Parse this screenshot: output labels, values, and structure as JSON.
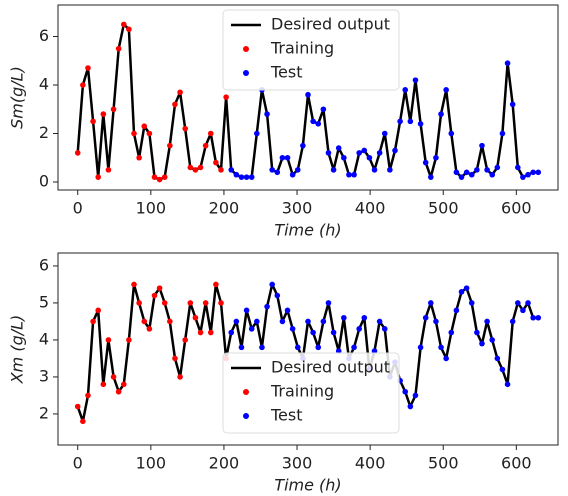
{
  "chart_data": [
    {
      "type": "line",
      "ylabel": "Sm(g/L)",
      "xlabel": "Time  (h)",
      "xlim": [
        -27,
        657
      ],
      "ylim": [
        -0.33,
        7.3
      ],
      "xticks": [
        0,
        100,
        200,
        300,
        400,
        500,
        600
      ],
      "yticks": [
        0,
        2,
        4,
        6
      ],
      "legend": "upper center",
      "series": [
        {
          "name": "Desired output",
          "color": "#000000",
          "style": "line",
          "x": [
            0,
            7,
            14,
            21,
            28,
            35,
            42,
            49,
            56,
            63,
            70,
            77,
            84,
            91,
            98,
            105,
            112,
            119,
            126,
            133,
            140,
            147,
            154,
            161,
            168,
            175,
            182,
            189,
            196,
            203,
            210,
            217,
            224,
            231,
            238,
            245,
            252,
            259,
            266,
            273,
            280,
            287,
            294,
            301,
            308,
            315,
            322,
            329,
            336,
            343,
            350,
            357,
            364,
            371,
            378,
            385,
            392,
            399,
            406,
            413,
            420,
            427,
            434,
            441,
            448,
            455,
            462,
            469,
            476,
            483,
            490,
            497,
            504,
            511,
            518,
            525,
            532,
            539,
            546,
            553,
            560,
            567,
            574,
            581,
            588,
            595,
            602,
            609,
            616,
            623,
            630
          ],
          "values": [
            1.2,
            4.0,
            4.7,
            2.5,
            0.2,
            2.8,
            0.5,
            3.0,
            5.5,
            6.5,
            6.3,
            2.0,
            1.0,
            2.3,
            2.0,
            0.2,
            0.1,
            0.2,
            1.5,
            3.2,
            3.7,
            2.2,
            0.6,
            0.5,
            0.6,
            1.5,
            2.0,
            0.8,
            0.5,
            3.5,
            0.5,
            0.3,
            0.2,
            0.2,
            0.2,
            2.0,
            3.8,
            2.8,
            0.5,
            0.4,
            1.0,
            1.0,
            0.3,
            0.5,
            1.5,
            3.6,
            2.5,
            2.4,
            3.0,
            1.2,
            0.5,
            1.4,
            1.0,
            0.3,
            0.3,
            1.2,
            1.3,
            1.0,
            0.5,
            1.2,
            2.0,
            0.5,
            1.3,
            2.5,
            3.8,
            2.5,
            4.2,
            2.4,
            0.8,
            0.2,
            1.0,
            2.8,
            3.8,
            2.0,
            0.4,
            0.2,
            0.4,
            0.3,
            0.5,
            1.5,
            0.5,
            0.3,
            0.6,
            2.0,
            4.9,
            3.2,
            0.6,
            0.2,
            0.3,
            0.4,
            0.4
          ]
        },
        {
          "name": "Training",
          "color": "#ff0000",
          "style": "dots",
          "x": [
            0,
            7,
            14,
            21,
            28,
            35,
            42,
            49,
            56,
            63,
            70,
            77,
            84,
            91,
            98,
            105,
            112,
            119,
            126,
            133,
            140,
            147,
            154,
            161,
            168,
            175,
            182,
            189,
            196,
            203
          ],
          "values": [
            1.2,
            4.0,
            4.7,
            2.5,
            0.2,
            2.8,
            0.5,
            3.0,
            5.5,
            6.5,
            6.3,
            2.0,
            1.0,
            2.3,
            2.0,
            0.2,
            0.1,
            0.2,
            1.5,
            3.2,
            3.7,
            2.2,
            0.6,
            0.5,
            0.6,
            1.5,
            2.0,
            0.8,
            0.5,
            3.5
          ]
        },
        {
          "name": "Test",
          "color": "#0000ff",
          "style": "dots",
          "x": [
            210,
            217,
            224,
            231,
            238,
            245,
            252,
            259,
            266,
            273,
            280,
            287,
            294,
            301,
            308,
            315,
            322,
            329,
            336,
            343,
            350,
            357,
            364,
            371,
            378,
            385,
            392,
            399,
            406,
            413,
            420,
            427,
            434,
            441,
            448,
            455,
            462,
            469,
            476,
            483,
            490,
            497,
            504,
            511,
            518,
            525,
            532,
            539,
            546,
            553,
            560,
            567,
            574,
            581,
            588,
            595,
            602,
            609,
            616,
            623,
            630
          ],
          "values": [
            0.5,
            0.3,
            0.2,
            0.2,
            0.2,
            2.0,
            3.8,
            2.8,
            0.5,
            0.4,
            1.0,
            1.0,
            0.3,
            0.5,
            1.5,
            3.6,
            2.5,
            2.4,
            3.0,
            1.2,
            0.5,
            1.4,
            1.0,
            0.3,
            0.3,
            1.2,
            1.3,
            1.0,
            0.5,
            1.2,
            2.0,
            0.5,
            1.3,
            2.5,
            3.8,
            2.5,
            4.2,
            2.4,
            0.8,
            0.2,
            1.0,
            2.8,
            3.8,
            2.0,
            0.4,
            0.2,
            0.4,
            0.3,
            0.5,
            1.5,
            0.5,
            0.3,
            0.6,
            2.0,
            4.9,
            3.2,
            0.6,
            0.2,
            0.3,
            0.4,
            0.4
          ]
        }
      ]
    },
    {
      "type": "line",
      "ylabel": "Xm (g/L)",
      "xlabel": "Time  (h)",
      "xlim": [
        -27,
        657
      ],
      "ylim": [
        1.16,
        6.35
      ],
      "xticks": [
        0,
        100,
        200,
        300,
        400,
        500,
        600
      ],
      "yticks": [
        2,
        3,
        4,
        5,
        6
      ],
      "legend": "lower center",
      "series": [
        {
          "name": "Desired output",
          "color": "#000000",
          "style": "line",
          "x": [
            0,
            7,
            14,
            21,
            28,
            35,
            42,
            49,
            56,
            63,
            70,
            77,
            84,
            91,
            98,
            105,
            112,
            119,
            126,
            133,
            140,
            147,
            154,
            161,
            168,
            175,
            182,
            189,
            196,
            203,
            210,
            217,
            224,
            231,
            238,
            245,
            252,
            259,
            266,
            273,
            280,
            287,
            294,
            301,
            308,
            315,
            322,
            329,
            336,
            343,
            350,
            357,
            364,
            371,
            378,
            385,
            392,
            399,
            406,
            413,
            420,
            427,
            434,
            441,
            448,
            455,
            462,
            469,
            476,
            483,
            490,
            497,
            504,
            511,
            518,
            525,
            532,
            539,
            546,
            553,
            560,
            567,
            574,
            581,
            588,
            595,
            602,
            609,
            616,
            623,
            630
          ],
          "values": [
            2.2,
            1.8,
            2.5,
            4.5,
            4.8,
            2.8,
            4.0,
            3.0,
            2.6,
            2.8,
            4.0,
            5.5,
            5.0,
            4.5,
            4.3,
            5.2,
            5.4,
            5.0,
            4.5,
            3.5,
            3.0,
            4.0,
            5.0,
            4.6,
            4.2,
            5.0,
            4.2,
            5.5,
            5.0,
            3.5,
            4.2,
            4.5,
            3.8,
            4.8,
            4.3,
            4.5,
            3.8,
            4.9,
            5.5,
            5.2,
            4.5,
            4.8,
            4.3,
            3.8,
            3.5,
            4.5,
            4.2,
            3.8,
            4.5,
            5.0,
            4.2,
            3.7,
            4.6,
            3.5,
            3.8,
            4.3,
            4.6,
            3.2,
            3.7,
            4.5,
            4.3,
            3.0,
            3.4,
            2.9,
            2.6,
            2.2,
            2.5,
            3.8,
            4.6,
            5.0,
            4.5,
            3.8,
            3.5,
            4.2,
            4.8,
            5.3,
            5.4,
            5.0,
            4.2,
            3.9,
            4.5,
            4.0,
            3.5,
            3.2,
            2.8,
            4.5,
            5.0,
            4.8,
            5.0,
            4.6,
            4.6
          ]
        },
        {
          "name": "Training",
          "color": "#ff0000",
          "style": "dots",
          "x": [
            0,
            7,
            14,
            21,
            28,
            35,
            42,
            49,
            56,
            63,
            70,
            77,
            84,
            91,
            98,
            105,
            112,
            119,
            126,
            133,
            140,
            147,
            154,
            161,
            168,
            175,
            182,
            189,
            196,
            203
          ],
          "values": [
            2.2,
            1.8,
            2.5,
            4.5,
            4.8,
            2.8,
            4.0,
            3.0,
            2.6,
            2.8,
            4.0,
            5.5,
            5.0,
            4.5,
            4.3,
            5.2,
            5.4,
            5.0,
            4.5,
            3.5,
            3.0,
            4.0,
            5.0,
            4.6,
            4.2,
            5.0,
            4.2,
            5.5,
            5.0,
            3.5
          ]
        },
        {
          "name": "Test",
          "color": "#0000ff",
          "style": "dots",
          "x": [
            210,
            217,
            224,
            231,
            238,
            245,
            252,
            259,
            266,
            273,
            280,
            287,
            294,
            301,
            308,
            315,
            322,
            329,
            336,
            343,
            350,
            357,
            364,
            371,
            378,
            385,
            392,
            399,
            406,
            413,
            420,
            427,
            434,
            441,
            448,
            455,
            462,
            469,
            476,
            483,
            490,
            497,
            504,
            511,
            518,
            525,
            532,
            539,
            546,
            553,
            560,
            567,
            574,
            581,
            588,
            595,
            602,
            609,
            616,
            623,
            630
          ],
          "values": [
            4.2,
            4.5,
            3.8,
            4.8,
            4.3,
            4.5,
            3.8,
            4.9,
            5.5,
            5.2,
            4.5,
            4.8,
            4.3,
            3.8,
            3.5,
            4.5,
            4.2,
            3.8,
            4.5,
            5.0,
            4.2,
            3.7,
            4.6,
            3.5,
            3.8,
            4.3,
            4.6,
            3.2,
            3.7,
            4.5,
            4.3,
            3.0,
            3.4,
            2.9,
            2.6,
            2.2,
            2.5,
            3.8,
            4.6,
            5.0,
            4.5,
            3.8,
            3.5,
            4.2,
            4.8,
            5.3,
            5.4,
            5.0,
            4.2,
            3.9,
            4.5,
            4.0,
            3.5,
            3.2,
            2.8,
            4.5,
            5.0,
            4.8,
            5.0,
            4.6,
            4.6
          ]
        }
      ]
    }
  ]
}
